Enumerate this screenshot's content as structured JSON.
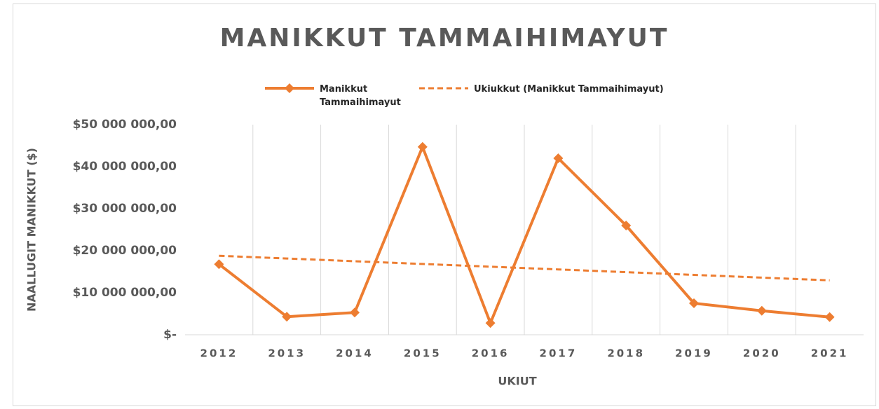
{
  "chart_data": {
    "type": "line",
    "title": "MANIKKUT TAMMAIHIMAYUT",
    "x_label": "UKIUT",
    "y_label": "NAALLUGIT MANIKKUT ($)",
    "categories": [
      "2012",
      "2013",
      "2014",
      "2015",
      "2016",
      "2017",
      "2018",
      "2019",
      "2020",
      "2021"
    ],
    "series": [
      {
        "name": "Manikkut Tammaihimayut",
        "color": "#ed7d31",
        "style": "solid",
        "marker": "diamond",
        "values": [
          16800000,
          4300000,
          5300000,
          44700000,
          2800000,
          42000000,
          26000000,
          7500000,
          5700000,
          4200000
        ]
      },
      {
        "name": "Ukiukkut (Manikkut Tammaihimayut)",
        "color": "#ed7d31",
        "style": "dashed",
        "values": [
          18800000,
          18150000,
          17500000,
          16850000,
          16200000,
          15550000,
          14900000,
          14250000,
          13600000,
          12950000
        ]
      }
    ],
    "ylim": [
      0,
      50000000
    ],
    "yticks": [
      {
        "value": 0,
        "label": "$-"
      },
      {
        "value": 10000000,
        "label": "$10 000 000,00"
      },
      {
        "value": 20000000,
        "label": "$20 000 000,00"
      },
      {
        "value": 30000000,
        "label": "$30 000 000,00"
      },
      {
        "value": 40000000,
        "label": "$40 000 000,00"
      },
      {
        "value": 50000000,
        "label": "$50 000 000,00"
      }
    ],
    "grid": "x",
    "legend": "top"
  }
}
